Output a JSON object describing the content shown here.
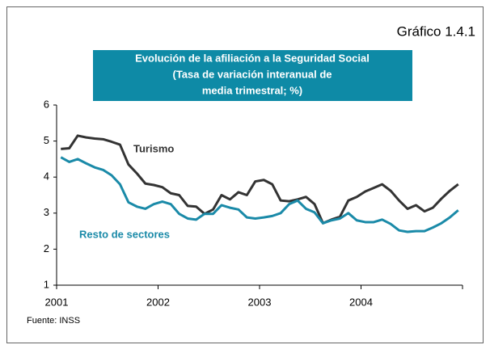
{
  "chart_data": {
    "type": "line",
    "chart_number": "Gráfico 1.4.1",
    "title": [
      "Evolución de la afiliación a la Seguridad Social",
      "(Tasa de variación interanual de",
      "media trimestral; %)"
    ],
    "source": "Fuente: INSS",
    "x": [
      2001.042,
      2001.125,
      2001.208,
      2001.292,
      2001.375,
      2001.458,
      2001.542,
      2001.625,
      2001.708,
      2001.792,
      2001.875,
      2001.958,
      2002.042,
      2002.125,
      2002.208,
      2002.292,
      2002.375,
      2002.458,
      2002.542,
      2002.625,
      2002.708,
      2002.792,
      2002.875,
      2002.958,
      2003.042,
      2003.125,
      2003.208,
      2003.292,
      2003.375,
      2003.458,
      2003.542,
      2003.625,
      2003.708,
      2003.792,
      2003.875,
      2003.958,
      2004.042,
      2004.125,
      2004.208,
      2004.292,
      2004.375,
      2004.458,
      2004.542,
      2004.625,
      2004.708,
      2004.792,
      2004.875,
      2004.958
    ],
    "series": [
      {
        "name": "Turismo",
        "color": "#333333",
        "values": [
          4.78,
          4.8,
          5.15,
          5.1,
          5.07,
          5.05,
          4.98,
          4.9,
          4.35,
          4.1,
          3.82,
          3.78,
          3.72,
          3.55,
          3.5,
          3.2,
          3.18,
          2.98,
          3.1,
          3.5,
          3.38,
          3.58,
          3.5,
          3.88,
          3.92,
          3.8,
          3.35,
          3.33,
          3.38,
          3.45,
          3.25,
          2.72,
          2.82,
          2.9,
          3.35,
          3.45,
          3.6,
          3.7,
          3.8,
          3.62,
          3.35,
          3.12,
          3.22,
          3.05,
          3.15,
          3.4,
          3.62,
          3.8
        ]
      },
      {
        "name": "Resto de sectores",
        "color": "#1a8aa8",
        "values": [
          4.55,
          4.42,
          4.5,
          4.38,
          4.27,
          4.2,
          4.05,
          3.8,
          3.3,
          3.18,
          3.12,
          3.25,
          3.32,
          3.25,
          2.98,
          2.85,
          2.82,
          2.98,
          2.98,
          3.22,
          3.15,
          3.1,
          2.88,
          2.85,
          2.88,
          2.92,
          3.0,
          3.25,
          3.35,
          3.12,
          3.02,
          2.72,
          2.8,
          2.85,
          3.0,
          2.8,
          2.75,
          2.75,
          2.82,
          2.7,
          2.52,
          2.48,
          2.5,
          2.5,
          2.6,
          2.72,
          2.88,
          3.08
        ]
      }
    ],
    "xlim": [
      2001,
      2005
    ],
    "xticks": [
      2001,
      2002,
      2003,
      2004
    ],
    "ylim": [
      1,
      6
    ],
    "yticks": [
      1,
      2,
      3,
      4,
      5,
      6
    ],
    "title_box_color": "#0e8aa6"
  }
}
